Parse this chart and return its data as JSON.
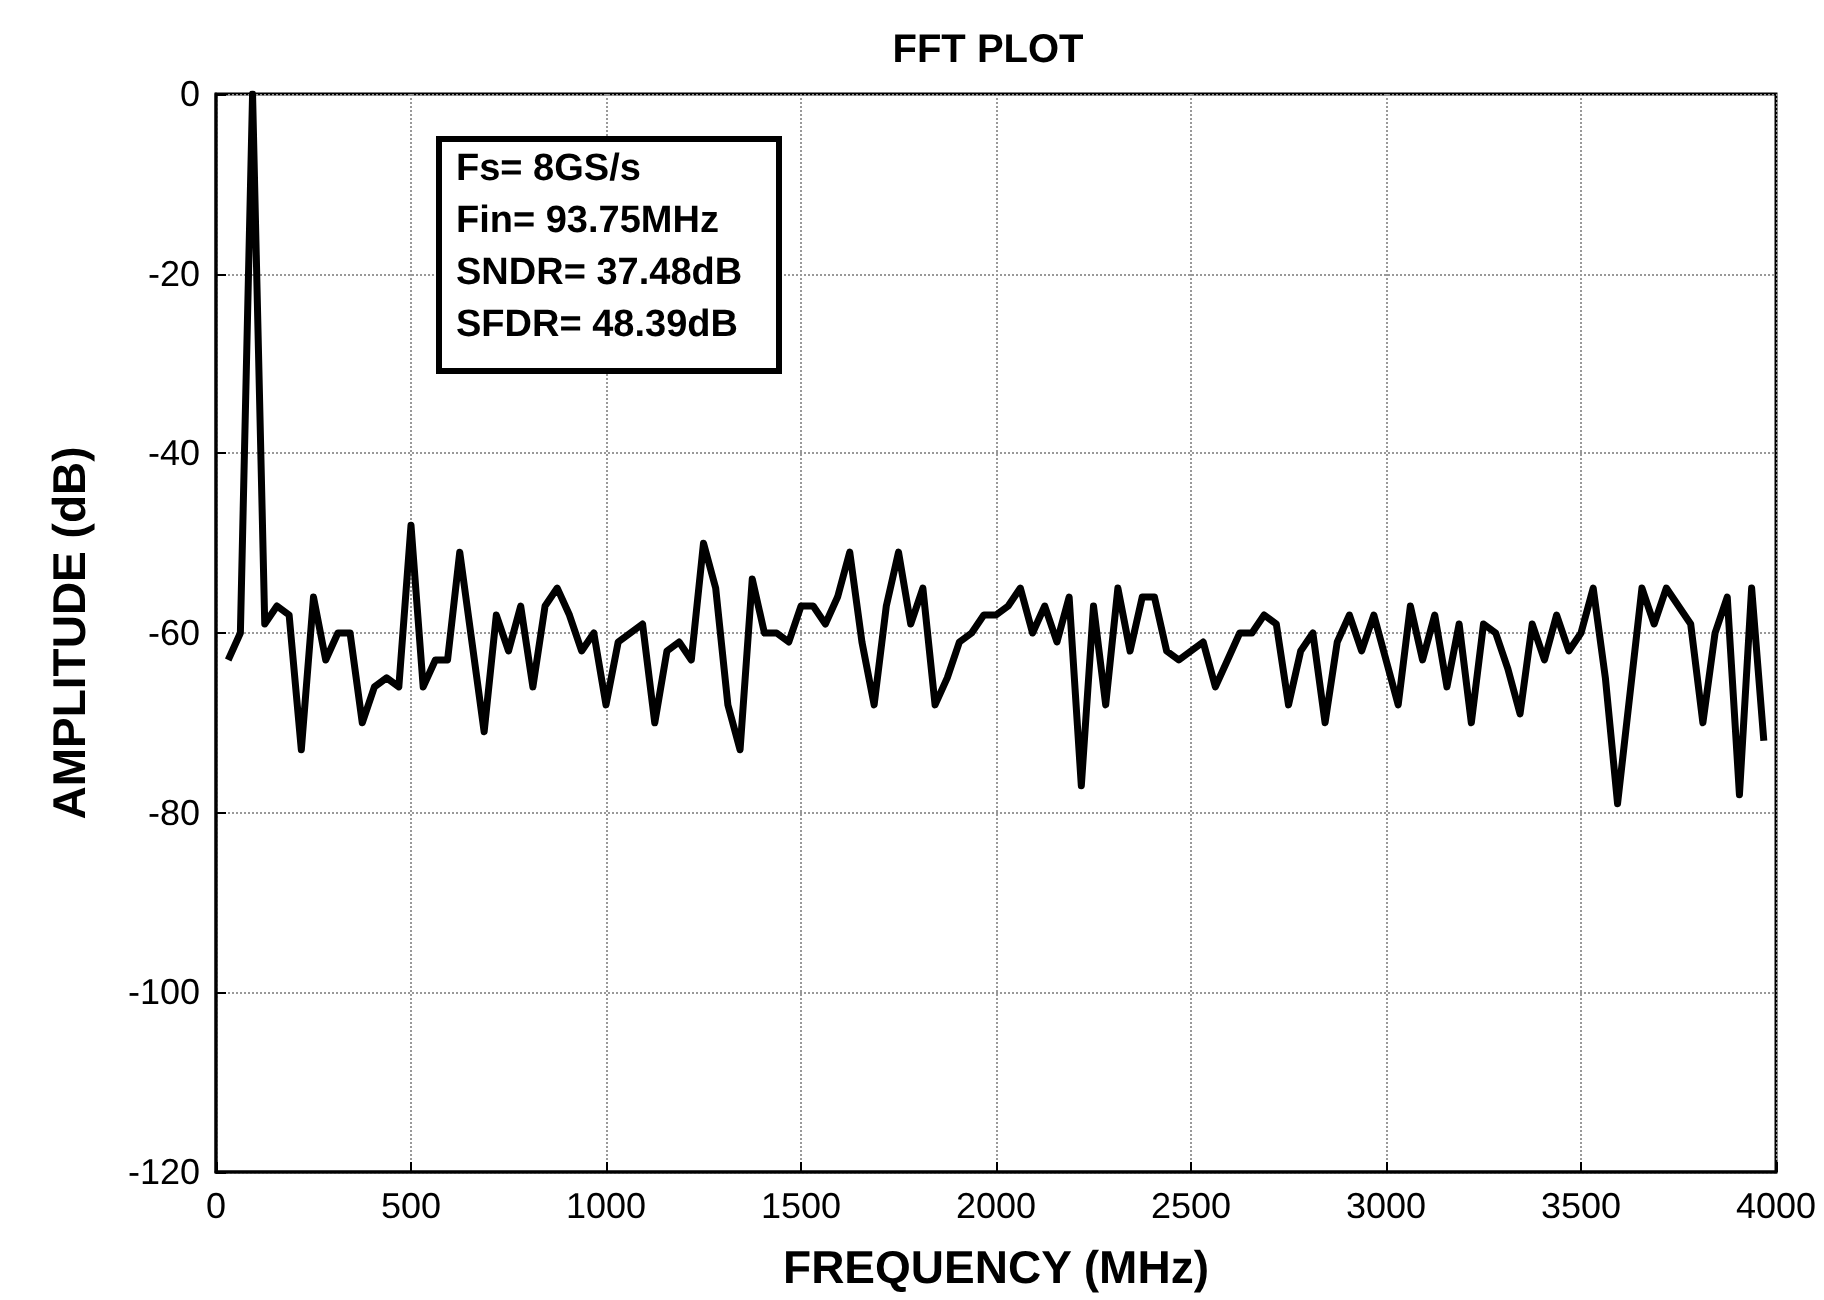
{
  "chart_data": {
    "type": "line",
    "title": "FFT PLOT",
    "xlabel": "FREQUENCY (MHz)",
    "ylabel": "AMPLITUDE (dB)",
    "annotations": [
      "Fs= 8GS/s",
      "Fin= 93.75MHz",
      "SNDR= 37.48dB",
      "SFDR= 48.39dB"
    ],
    "x": [
      31.25,
      62.5,
      93.75,
      125,
      156.25,
      187.5,
      218.75,
      250,
      281.25,
      312.5,
      343.75,
      375,
      406.25,
      437.5,
      468.75,
      500,
      531.25,
      562.5,
      593.75,
      625,
      656.25,
      687.5,
      718.75,
      750,
      781.25,
      812.5,
      843.75,
      875,
      906.25,
      937.5,
      968.75,
      1000,
      1031.25,
      1062.5,
      1093.75,
      1125,
      1156.25,
      1187.5,
      1218.75,
      1250,
      1281.25,
      1312.5,
      1343.75,
      1375,
      1406.25,
      1437.5,
      1468.75,
      1500,
      1531.25,
      1562.5,
      1593.75,
      1625,
      1656.25,
      1687.5,
      1718.75,
      1750,
      1781.25,
      1812.5,
      1843.75,
      1875,
      1906.25,
      1937.5,
      1968.75,
      2000,
      2031.25,
      2062.5,
      2093.75,
      2125,
      2156.25,
      2187.5,
      2218.75,
      2250,
      2281.25,
      2312.5,
      2343.75,
      2375,
      2406.25,
      2437.5,
      2468.75,
      2500,
      2531.25,
      2562.5,
      2593.75,
      2625,
      2656.25,
      2687.5,
      2718.75,
      2750,
      2781.25,
      2812.5,
      2843.75,
      2875,
      2906.25,
      2937.5,
      2968.75,
      3000,
      3031.25,
      3062.5,
      3093.75,
      3125,
      3156.25,
      3187.5,
      3218.75,
      3250,
      3281.25,
      3312.5,
      3343.75,
      3375,
      3406.25,
      3437.5,
      3468.75,
      3500,
      3531.25,
      3562.5,
      3593.75,
      3625,
      3656.25,
      3687.5,
      3718.75,
      3750,
      3781.25,
      3812.5,
      3843.75,
      3875,
      3906.25,
      3937.5,
      3968.75
    ],
    "series": [
      {
        "color": "#000000",
        "values": [
          -63,
          -60,
          0,
          -59,
          -57,
          -58,
          -73,
          -56,
          -63,
          -60,
          -60,
          -70,
          -66,
          -65,
          -66,
          -48,
          -66,
          -63,
          -63,
          -51,
          -61,
          -71,
          -58,
          -62,
          -57,
          -66,
          -57,
          -55,
          -58,
          -62,
          -60,
          -68,
          -61,
          -60,
          -59,
          -70,
          -62,
          -61,
          -63,
          -50,
          -55,
          -68,
          -73,
          -54,
          -60,
          -60,
          -61,
          -57,
          -57,
          -59,
          -56,
          -51,
          -61,
          -68,
          -57,
          -51,
          -59,
          -55,
          -68,
          -65,
          -61,
          -60,
          -58,
          -58,
          -57,
          -55,
          -60,
          -57,
          -61,
          -56,
          -77,
          -57,
          -68,
          -55,
          -62,
          -56,
          -56,
          -62,
          -63,
          -62,
          -61,
          -66,
          -63,
          -60,
          -60,
          -58,
          -59,
          -68,
          -62,
          -60,
          -70,
          -61,
          -58,
          -62,
          -58,
          -63,
          -68,
          -57,
          -63,
          -58,
          -66,
          -59,
          -70,
          -59,
          -60,
          -64,
          -69,
          -59,
          -63,
          -58,
          -62,
          -60,
          -55,
          -65,
          -79,
          -67,
          -55,
          -59,
          -55,
          -57,
          -59,
          -70,
          -60,
          -56,
          -78,
          -55,
          -72
        ]
      }
    ],
    "xlim": [
      0,
      4000
    ],
    "xticks": [
      0,
      500,
      1000,
      1500,
      2000,
      2500,
      3000,
      3500,
      4000
    ],
    "ylim": [
      -120,
      0
    ],
    "yticks": [
      -120,
      -100,
      -80,
      -60,
      -40,
      -20,
      0
    ],
    "grid": true,
    "marker": "none",
    "line_style": "solid"
  }
}
